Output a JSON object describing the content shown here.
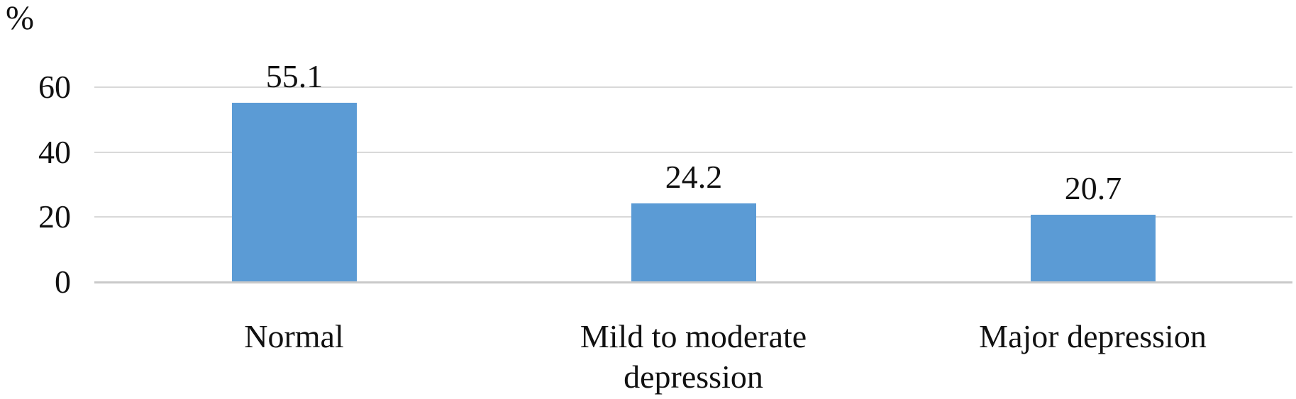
{
  "chart_data": {
    "type": "bar",
    "categories": [
      "Normal",
      "Mild to moderate\ndepression",
      "Major depression"
    ],
    "values": [
      55.1,
      24.2,
      20.7
    ],
    "value_labels": [
      "55.1",
      "24.2",
      "20.7"
    ],
    "title": "",
    "xlabel": "",
    "ylabel": "%",
    "ylim": [
      0,
      60
    ],
    "yticks": [
      "0",
      "20",
      "40",
      "60"
    ],
    "grid": true,
    "legend": false,
    "bar_color": "#5B9BD5",
    "gridline_color": "#D9D9D9",
    "axis_line_color": "#C9C9C9",
    "text_color": "#111111"
  }
}
